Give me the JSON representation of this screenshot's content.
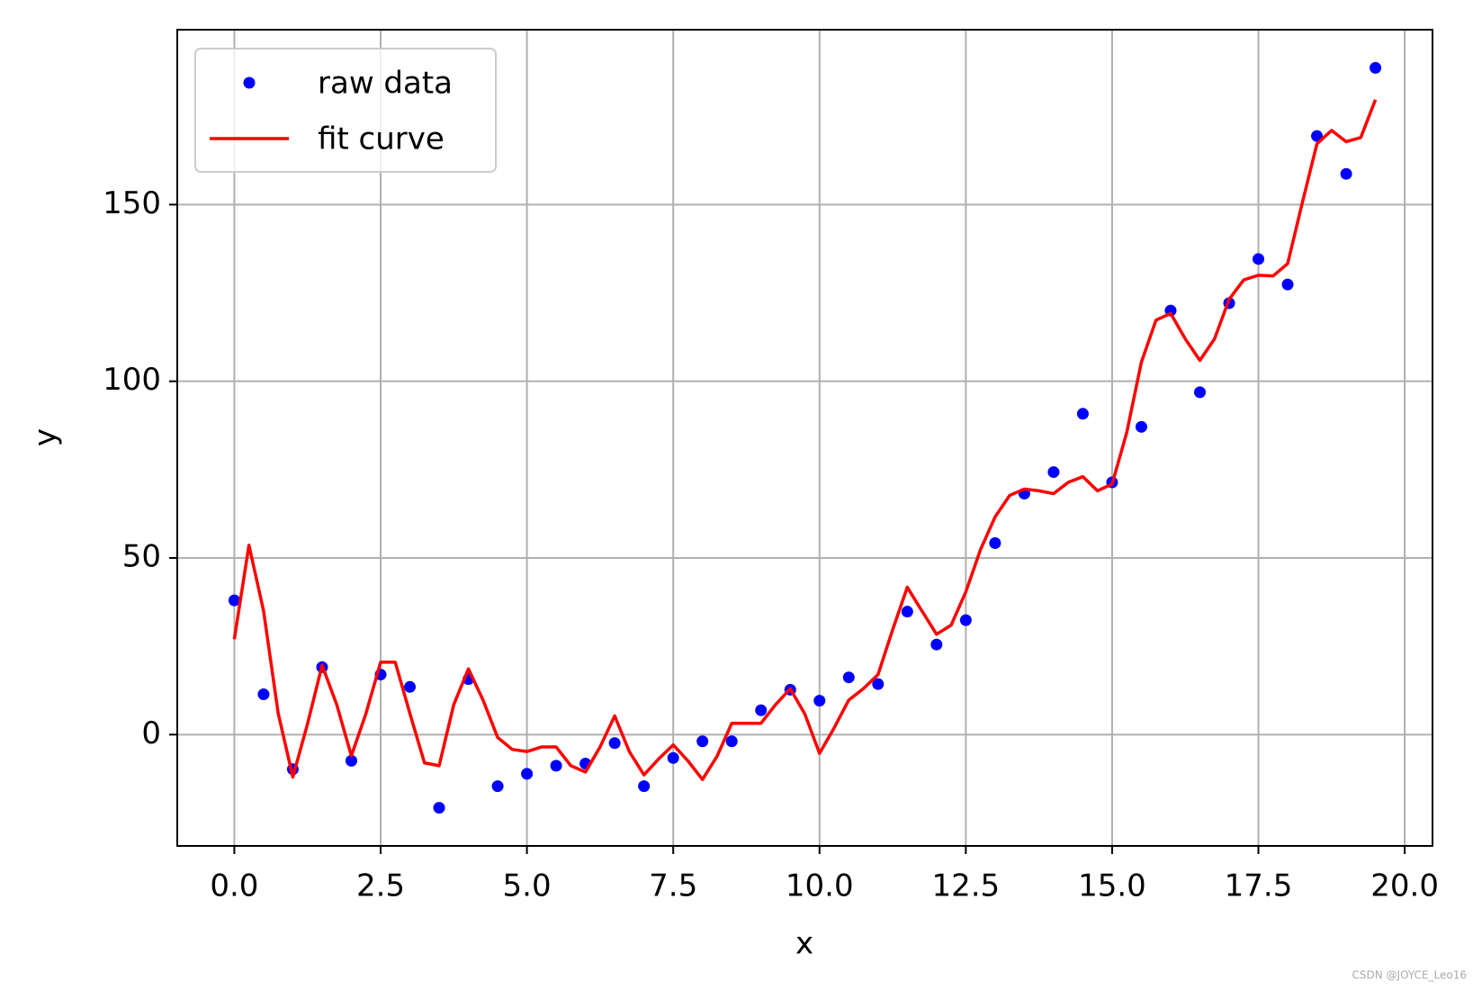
{
  "chart_data": {
    "type": "line",
    "xlabel": "x",
    "ylabel": "y",
    "xlim": [
      -0.975,
      20.475
    ],
    "ylim": [
      -31.5,
      199.5
    ],
    "xticks": [
      {
        "value": 0,
        "label": "0.0"
      },
      {
        "value": 2.5,
        "label": "2.5"
      },
      {
        "value": 5,
        "label": "5.0"
      },
      {
        "value": 7.5,
        "label": "7.5"
      },
      {
        "value": 10,
        "label": "10.0"
      },
      {
        "value": 12.5,
        "label": "12.5"
      },
      {
        "value": 15,
        "label": "15.0"
      },
      {
        "value": 17.5,
        "label": "17.5"
      },
      {
        "value": 20,
        "label": "20.0"
      }
    ],
    "yticks": [
      0,
      50,
      100,
      150
    ],
    "grid": true,
    "legend": "upper-left",
    "watermark": "CSDN @JOYCE_Leo16",
    "series": [
      {
        "name": "raw data",
        "color": "#0000ff",
        "marker": "o",
        "linestyle": "none",
        "x": [
          0,
          0.5,
          1,
          1.5,
          2,
          2.5,
          3,
          3.5,
          4,
          4.5,
          5,
          5.5,
          6,
          6.5,
          7,
          7.5,
          8,
          8.5,
          9,
          9.5,
          10,
          10.5,
          11,
          11.5,
          12,
          12.5,
          13,
          13.5,
          14,
          14.5,
          15,
          15.5,
          16,
          16.5,
          17,
          17.5,
          18,
          18.5,
          19,
          19.5
        ],
        "values": [
          38,
          11.4,
          -9.8,
          19.1,
          -7.4,
          17,
          13.5,
          -20.7,
          15.7,
          -14.6,
          -11.1,
          -8.8,
          -8.2,
          -2.4,
          -14.6,
          -6.6,
          -1.9,
          -1.9,
          6.9,
          12.7,
          9.6,
          16.2,
          14.3,
          34.8,
          25.5,
          32.4,
          54.2,
          68.2,
          74.3,
          90.8,
          71.4,
          87.1,
          120,
          96.9,
          122.1,
          134.6,
          127.4,
          169.4,
          158.7,
          188.7
        ]
      },
      {
        "name": "fit curve",
        "color": "#ff0000",
        "marker": "none",
        "linestyle": "solid",
        "x": [
          0,
          0.25,
          0.5,
          0.75,
          1,
          1.25,
          1.5,
          1.75,
          2,
          2.25,
          2.5,
          2.75,
          3,
          3.25,
          3.5,
          3.75,
          4,
          4.25,
          4.5,
          4.75,
          5,
          5.25,
          5.5,
          5.75,
          6,
          6.25,
          6.5,
          6.75,
          7,
          7.25,
          7.5,
          7.75,
          8,
          8.25,
          8.5,
          8.75,
          9,
          9.25,
          9.5,
          9.75,
          10,
          10.25,
          10.5,
          10.75,
          11,
          11.25,
          11.5,
          11.75,
          12,
          12.25,
          12.5,
          12.75,
          13,
          13.25,
          13.5,
          13.75,
          14,
          14.25,
          14.5,
          14.75,
          15,
          15.25,
          15.5,
          15.75,
          16,
          16.25,
          16.5,
          16.75,
          17,
          17.25,
          17.5,
          17.75,
          18,
          18.25,
          18.5,
          18.75,
          19,
          19.25,
          19.5
        ],
        "values": [
          27,
          53.6,
          35,
          6,
          -12,
          3,
          19.6,
          8.5,
          -6,
          6,
          20.5,
          20.5,
          6,
          -8,
          -8.8,
          8.5,
          18.6,
          9.8,
          -0.8,
          -4.2,
          -4.8,
          -3.5,
          -3.5,
          -8.8,
          -10.6,
          -3.5,
          5.3,
          -4.8,
          -11.4,
          -6.9,
          -2.9,
          -7.4,
          -12.7,
          -6.1,
          3.2,
          3.2,
          3.2,
          8.5,
          13,
          5.8,
          -5.3,
          1.9,
          9.8,
          13,
          17,
          29.7,
          41.7,
          35,
          28.4,
          31,
          40.4,
          52.3,
          61.6,
          67.7,
          69.5,
          69,
          68.2,
          71.4,
          73,
          69,
          70.9,
          85.5,
          105.4,
          117.3,
          119.2,
          112,
          105.9,
          112,
          123.2,
          128.7,
          130,
          129.8,
          133.3,
          150.5,
          167.2,
          171,
          167.8,
          169,
          179.7
        ]
      }
    ]
  }
}
